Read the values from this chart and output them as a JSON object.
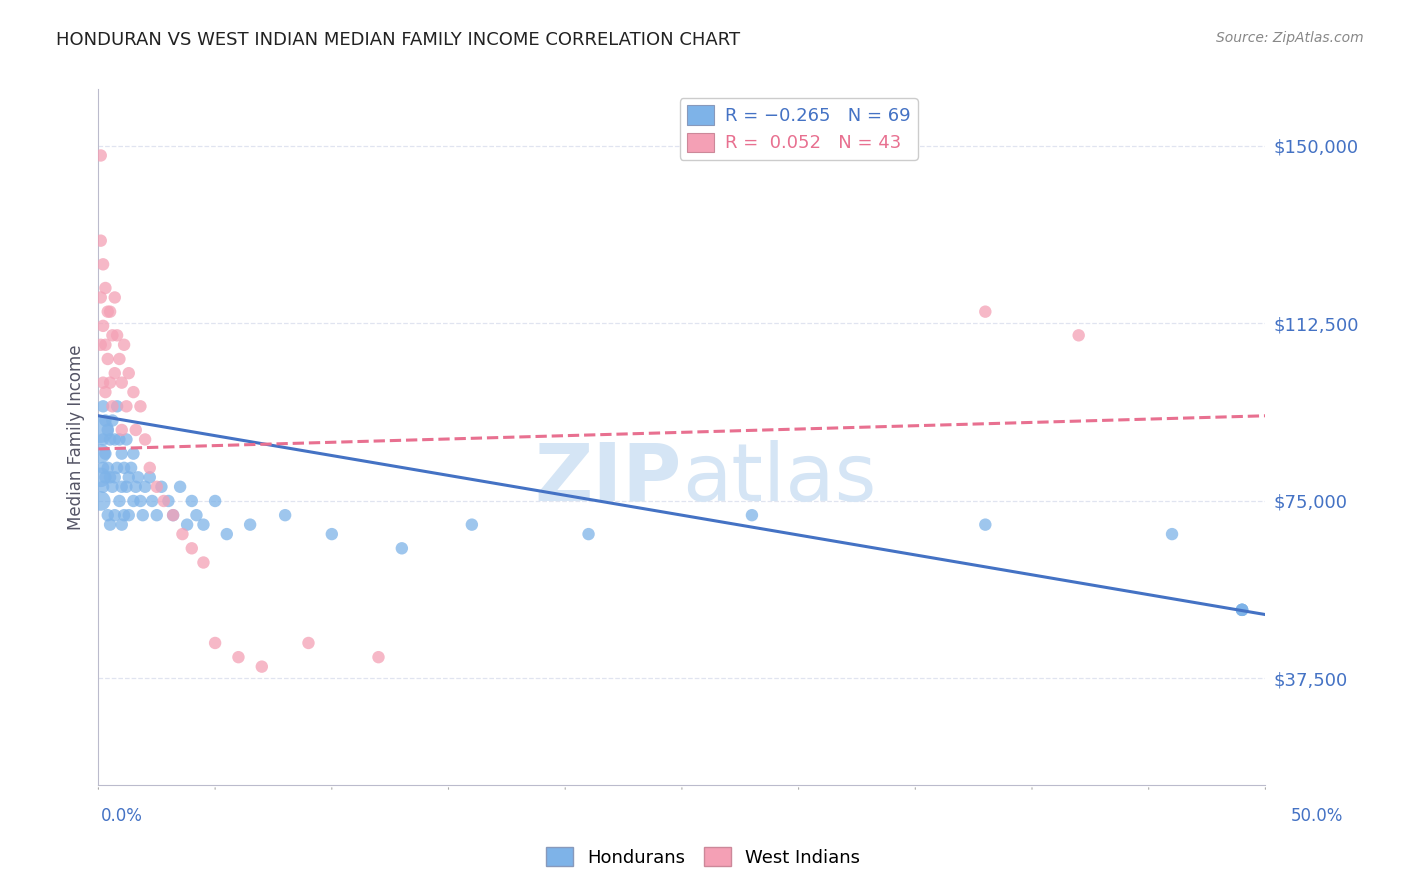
{
  "title": "HONDURAN VS WEST INDIAN MEDIAN FAMILY INCOME CORRELATION CHART",
  "source": "Source: ZipAtlas.com",
  "ylabel": "Median Family Income",
  "watermark": "ZIPatlas",
  "y_ticks": [
    37500,
    75000,
    112500,
    150000
  ],
  "y_tick_labels": [
    "$37,500",
    "$75,000",
    "$112,500",
    "$150,000"
  ],
  "x_min": 0.0,
  "x_max": 0.5,
  "y_min": 15000,
  "y_max": 162000,
  "blue_color": "#7EB3E8",
  "pink_color": "#F4A0B5",
  "blue_line_color": "#4472C4",
  "pink_line_color": "#E87090",
  "axis_label_color": "#4472C4",
  "grid_color": "#E0E4F0",
  "background_color": "#FFFFFF",
  "title_color": "#222222",
  "source_color": "#888888",
  "watermark_color": "#D5E5F5",
  "blue_line_x0": 0.0,
  "blue_line_x1": 0.5,
  "blue_line_y0": 93000,
  "blue_line_y1": 51000,
  "pink_line_x0": 0.0,
  "pink_line_x1": 0.5,
  "pink_line_y0": 86000,
  "pink_line_y1": 93000,
  "blue_x": [
    0.001,
    0.001,
    0.001,
    0.001,
    0.002,
    0.002,
    0.002,
    0.002,
    0.003,
    0.003,
    0.003,
    0.004,
    0.004,
    0.004,
    0.005,
    0.005,
    0.005,
    0.006,
    0.006,
    0.007,
    0.007,
    0.007,
    0.008,
    0.008,
    0.009,
    0.009,
    0.01,
    0.01,
    0.01,
    0.011,
    0.011,
    0.012,
    0.012,
    0.013,
    0.013,
    0.014,
    0.015,
    0.015,
    0.016,
    0.017,
    0.018,
    0.019,
    0.02,
    0.022,
    0.023,
    0.025,
    0.027,
    0.03,
    0.032,
    0.035,
    0.038,
    0.04,
    0.042,
    0.045,
    0.05,
    0.055,
    0.065,
    0.08,
    0.1,
    0.13,
    0.16,
    0.21,
    0.28,
    0.38,
    0.46,
    0.49,
    0.49,
    0.49,
    0.49
  ],
  "blue_y": [
    90000,
    85000,
    80000,
    75000,
    95000,
    88000,
    82000,
    78000,
    92000,
    85000,
    80000,
    90000,
    82000,
    72000,
    88000,
    80000,
    70000,
    92000,
    78000,
    88000,
    80000,
    72000,
    95000,
    82000,
    88000,
    75000,
    85000,
    78000,
    70000,
    82000,
    72000,
    88000,
    78000,
    80000,
    72000,
    82000,
    85000,
    75000,
    78000,
    80000,
    75000,
    72000,
    78000,
    80000,
    75000,
    72000,
    78000,
    75000,
    72000,
    78000,
    70000,
    75000,
    72000,
    70000,
    75000,
    68000,
    70000,
    72000,
    68000,
    65000,
    70000,
    68000,
    72000,
    70000,
    68000,
    52000,
    52000,
    52000,
    52000
  ],
  "blue_sizes": [
    350,
    200,
    200,
    200,
    80,
    80,
    80,
    80,
    80,
    80,
    80,
    80,
    80,
    80,
    80,
    80,
    80,
    80,
    80,
    80,
    80,
    80,
    80,
    80,
    80,
    80,
    80,
    80,
    80,
    80,
    80,
    80,
    80,
    80,
    80,
    80,
    80,
    80,
    80,
    80,
    80,
    80,
    80,
    80,
    80,
    80,
    80,
    80,
    80,
    80,
    80,
    80,
    80,
    80,
    80,
    80,
    80,
    80,
    80,
    80,
    80,
    80,
    80,
    80,
    80,
    80,
    80,
    80,
    80
  ],
  "pink_x": [
    0.001,
    0.001,
    0.001,
    0.001,
    0.002,
    0.002,
    0.002,
    0.003,
    0.003,
    0.003,
    0.004,
    0.004,
    0.005,
    0.005,
    0.006,
    0.006,
    0.007,
    0.007,
    0.008,
    0.009,
    0.01,
    0.01,
    0.011,
    0.012,
    0.013,
    0.015,
    0.016,
    0.018,
    0.02,
    0.022,
    0.025,
    0.028,
    0.032,
    0.036,
    0.04,
    0.045,
    0.05,
    0.06,
    0.07,
    0.09,
    0.12,
    0.38,
    0.42
  ],
  "pink_y": [
    148000,
    130000,
    118000,
    108000,
    125000,
    112000,
    100000,
    120000,
    108000,
    98000,
    115000,
    105000,
    115000,
    100000,
    110000,
    95000,
    118000,
    102000,
    110000,
    105000,
    100000,
    90000,
    108000,
    95000,
    102000,
    98000,
    90000,
    95000,
    88000,
    82000,
    78000,
    75000,
    72000,
    68000,
    65000,
    62000,
    45000,
    42000,
    40000,
    45000,
    42000,
    115000,
    110000
  ],
  "pink_sizes": [
    80,
    80,
    80,
    80,
    80,
    80,
    80,
    80,
    80,
    80,
    80,
    80,
    80,
    80,
    80,
    80,
    80,
    80,
    80,
    80,
    80,
    80,
    80,
    80,
    80,
    80,
    80,
    80,
    80,
    80,
    80,
    80,
    80,
    80,
    80,
    80,
    80,
    80,
    80,
    80,
    80,
    80,
    80
  ]
}
